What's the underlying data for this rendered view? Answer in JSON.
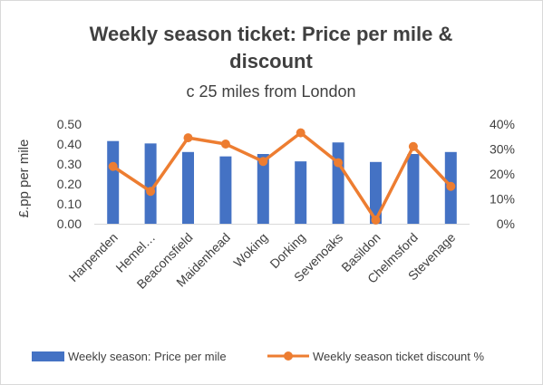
{
  "chart_data": {
    "type": "bar",
    "title_line1": "Weekly season ticket: Price per mile &",
    "title_line2": "discount",
    "subtitle": "c 25 miles from London",
    "ylabel": "£.pp per mile",
    "y2label": "",
    "categories": [
      "Harpenden",
      "Hemel…",
      "Beaconsfield",
      "Maidenhead",
      "Woking",
      "Dorking",
      "Sevenoaks",
      "Basildon",
      "Chelmsford",
      "Stevenage"
    ],
    "ylim": [
      0,
      0.5
    ],
    "y_ticks": [
      "0.00",
      "0.10",
      "0.20",
      "0.30",
      "0.40",
      "0.50"
    ],
    "y2lim": [
      0,
      0.4
    ],
    "y2_ticks": [
      "0%",
      "10%",
      "20%",
      "30%",
      "40%"
    ],
    "series": [
      {
        "name": "Weekly season: Price per mile",
        "type": "bar",
        "axis": "left",
        "color": "#4472C4",
        "values": [
          0.415,
          0.403,
          0.36,
          0.338,
          0.35,
          0.313,
          0.408,
          0.31,
          0.35,
          0.36
        ]
      },
      {
        "name": "Weekly season ticket discount %",
        "type": "line",
        "axis": "right",
        "color": "#ED7D31",
        "values": [
          0.23,
          0.13,
          0.345,
          0.32,
          0.25,
          0.365,
          0.245,
          0.015,
          0.31,
          0.15
        ]
      }
    ],
    "grid": false,
    "legend": "bottom"
  }
}
